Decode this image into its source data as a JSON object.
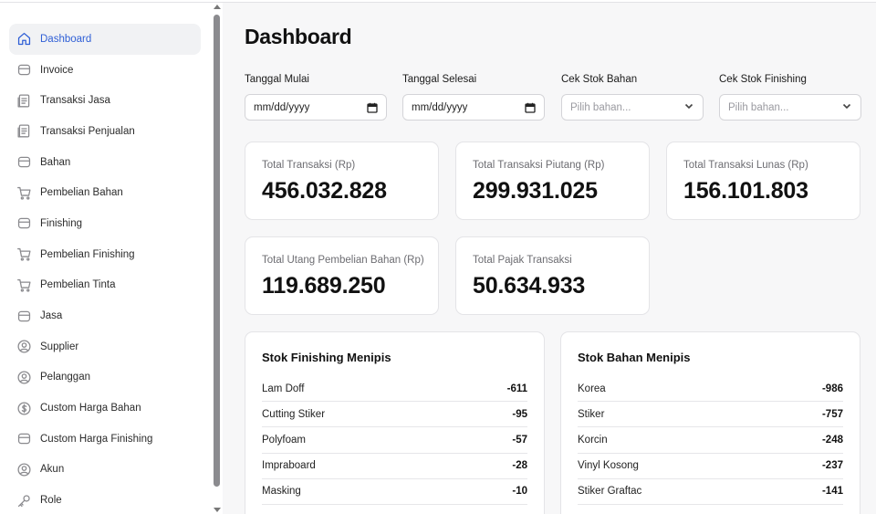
{
  "sidebar": {
    "items": [
      {
        "label": "Dashboard",
        "icon": "home-icon",
        "active": true
      },
      {
        "label": "Invoice",
        "icon": "box-icon"
      },
      {
        "label": "Transaksi Jasa",
        "icon": "receipt-icon"
      },
      {
        "label": "Transaksi Penjualan",
        "icon": "receipt-icon"
      },
      {
        "label": "Bahan",
        "icon": "box-icon"
      },
      {
        "label": "Pembelian Bahan",
        "icon": "cart-icon"
      },
      {
        "label": "Finishing",
        "icon": "box-icon"
      },
      {
        "label": "Pembelian Finishing",
        "icon": "cart-icon"
      },
      {
        "label": "Pembelian Tinta",
        "icon": "cart-icon"
      },
      {
        "label": "Jasa",
        "icon": "box-icon"
      },
      {
        "label": "Supplier",
        "icon": "user-circle-icon"
      },
      {
        "label": "Pelanggan",
        "icon": "user-circle-icon"
      },
      {
        "label": "Custom Harga Bahan",
        "icon": "dollar-circle-icon"
      },
      {
        "label": "Custom Harga Finishing",
        "icon": "box-icon"
      },
      {
        "label": "Akun",
        "icon": "user-circle-icon"
      },
      {
        "label": "Role",
        "icon": "key-icon"
      }
    ]
  },
  "main": {
    "title": "Dashboard",
    "filters": {
      "start_date": {
        "label": "Tanggal Mulai",
        "value": "mm/dd/yyyy"
      },
      "end_date": {
        "label": "Tanggal Selesai",
        "value": "mm/dd/yyyy"
      },
      "stock_material": {
        "label": "Cek Stok Bahan",
        "placeholder": "Pilih bahan..."
      },
      "stock_finishing": {
        "label": "Cek Stok Finishing",
        "placeholder": "Pilih bahan..."
      }
    },
    "stats": [
      {
        "label": "Total Transaksi (Rp)",
        "value": "456.032.828"
      },
      {
        "label": "Total Transaksi Piutang (Rp)",
        "value": "299.931.025"
      },
      {
        "label": "Total Transaksi Lunas (Rp)",
        "value": "156.101.803"
      },
      {
        "label": "Total Utang Pembelian Bahan (Rp)",
        "value": "119.689.250"
      },
      {
        "label": "Total Pajak Transaksi",
        "value": "50.634.933"
      }
    ],
    "low_finishing": {
      "title": "Stok Finishing Menipis",
      "rows": [
        {
          "name": "Lam Doff",
          "qty": "-611"
        },
        {
          "name": "Cutting Stiker",
          "qty": "-95"
        },
        {
          "name": "Polyfoam",
          "qty": "-57"
        },
        {
          "name": "Impraboard",
          "qty": "-28"
        },
        {
          "name": "Masking",
          "qty": "-10"
        }
      ]
    },
    "low_material": {
      "title": "Stok Bahan Menipis",
      "rows": [
        {
          "name": "Korea",
          "qty": "-986"
        },
        {
          "name": "Stiker",
          "qty": "-757"
        },
        {
          "name": "Korcin",
          "qty": "-248"
        },
        {
          "name": "Vinyl Kosong",
          "qty": "-237"
        },
        {
          "name": "Stiker Graftac",
          "qty": "-141"
        }
      ]
    }
  },
  "colors": {
    "accent": "#2f5fd6",
    "active_bg": "#f1f2f4",
    "page_bg": "#f7f7f8"
  }
}
